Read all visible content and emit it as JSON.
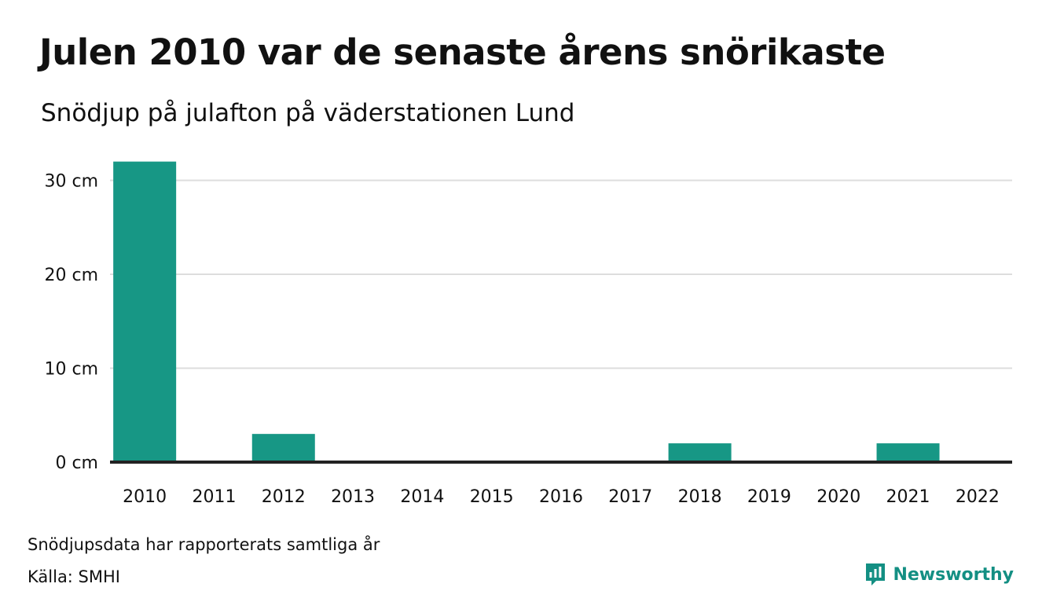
{
  "colors": {
    "bar": "#179785",
    "grid": "#dddddd",
    "baseline": "#222222",
    "text": "#111111",
    "brand": "#138f83"
  },
  "chart_data": {
    "type": "bar",
    "title": "Julen 2010 var de senaste årens snörikaste",
    "subtitle": "Snödjup på julafton på väderstationen Lund",
    "categories": [
      "2010",
      "2011",
      "2012",
      "2013",
      "2014",
      "2015",
      "2016",
      "2017",
      "2018",
      "2019",
      "2020",
      "2021",
      "2022"
    ],
    "values": [
      32,
      0,
      3,
      0,
      0,
      0,
      0,
      0,
      2,
      0,
      0,
      2,
      0
    ],
    "ylim": [
      0,
      32
    ],
    "yticks": [
      0,
      10,
      20,
      30
    ],
    "ytick_labels": [
      "0 cm",
      "10 cm",
      "20 cm",
      "30 cm"
    ],
    "xlabel": "",
    "ylabel": "",
    "grid": true
  },
  "footer": {
    "note": "Snödjupsdata har rapporterats samtliga år",
    "source": "Källa: SMHI",
    "brand": "Newsworthy",
    "brand_icon": "newsworthy-logo-icon"
  }
}
